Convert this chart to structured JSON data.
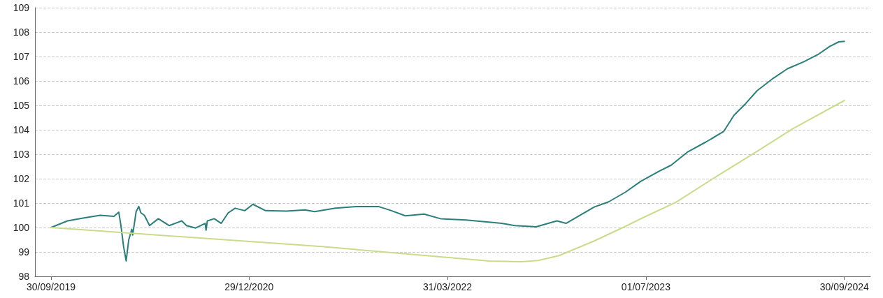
{
  "chart_data": {
    "type": "line",
    "xlim": [
      "2019-08-24",
      "2024-11-29"
    ],
    "xticks": [
      {
        "value": "2019-09-30",
        "label": "30/09/2019"
      },
      {
        "value": "2020-12-29",
        "label": "29/12/2020"
      },
      {
        "value": "2022-03-31",
        "label": "31/03/2022"
      },
      {
        "value": "2023-07-01",
        "label": "01/07/2023"
      },
      {
        "value": "2024-09-30",
        "label": "30/09/2024"
      }
    ],
    "ylim": [
      98,
      109
    ],
    "yticks": [
      98,
      99,
      100,
      101,
      102,
      103,
      104,
      105,
      106,
      107,
      108,
      109
    ],
    "grid": "y",
    "marker": "none",
    "line_style": "solid",
    "series": [
      {
        "color": "#2a7f7b",
        "x": [
          "2019-09-30",
          "2019-11-07",
          "2019-12-15",
          "2020-01-21",
          "2020-02-22",
          "2020-03-04",
          "2020-03-09",
          "2020-03-15",
          "2020-03-21",
          "2020-03-27",
          "2020-04-03",
          "2020-04-05",
          "2020-04-13",
          "2020-04-19",
          "2020-04-24",
          "2020-05-02",
          "2020-05-14",
          "2020-06-03",
          "2020-06-28",
          "2020-07-27",
          "2020-08-07",
          "2020-08-28",
          "2020-09-19",
          "2020-09-21",
          "2020-09-24",
          "2020-10-10",
          "2020-10-26",
          "2020-11-11",
          "2020-11-27",
          "2020-12-19",
          "2021-01-07",
          "2021-02-05",
          "2021-03-25",
          "2021-05-07",
          "2021-05-29",
          "2021-07-16",
          "2021-09-02",
          "2021-10-23",
          "2021-11-22",
          "2021-12-24",
          "2022-02-05",
          "2022-03-15",
          "2022-05-13",
          "2022-08-03",
          "2022-09-02",
          "2022-10-21",
          "2022-12-08",
          "2022-12-29",
          "2023-03-04",
          "2023-04-06",
          "2023-05-15",
          "2023-06-19",
          "2023-08-01",
          "2023-08-28",
          "2023-10-04",
          "2023-11-16",
          "2023-12-27",
          "2024-01-20",
          "2024-02-16",
          "2024-03-13",
          "2024-04-20",
          "2024-05-22",
          "2024-06-29",
          "2024-07-31",
          "2024-08-27",
          "2024-09-17",
          "2024-09-30"
        ],
        "values": [
          100.0,
          100.27,
          100.39,
          100.5,
          100.46,
          100.63,
          100.08,
          99.23,
          98.63,
          99.5,
          99.93,
          99.69,
          100.65,
          100.86,
          100.6,
          100.5,
          100.08,
          100.36,
          100.08,
          100.27,
          100.08,
          99.98,
          100.17,
          99.89,
          100.27,
          100.36,
          100.17,
          100.6,
          100.79,
          100.69,
          100.95,
          100.69,
          100.67,
          100.72,
          100.65,
          100.79,
          100.86,
          100.86,
          100.69,
          100.48,
          100.55,
          100.36,
          100.31,
          100.17,
          100.08,
          100.03,
          100.27,
          100.17,
          100.84,
          101.05,
          101.45,
          101.89,
          102.31,
          102.55,
          103.08,
          103.5,
          103.93,
          104.6,
          105.08,
          105.6,
          106.12,
          106.5,
          106.79,
          107.08,
          107.41,
          107.6,
          107.62
        ]
      },
      {
        "color": "#c8dc8c",
        "x": [
          "2019-09-30",
          "2021-06-14",
          "2022-07-05",
          "2022-09-16",
          "2022-10-26",
          "2022-12-13",
          "2023-03-04",
          "2023-05-15",
          "2023-06-24",
          "2023-09-08",
          "2023-12-13",
          "2024-03-13",
          "2024-06-02",
          "2024-09-30"
        ],
        "values": [
          100.0,
          99.22,
          98.63,
          98.6,
          98.65,
          98.85,
          99.45,
          100.05,
          100.4,
          101.03,
          102.12,
          103.12,
          104.03,
          105.2
        ]
      }
    ]
  }
}
